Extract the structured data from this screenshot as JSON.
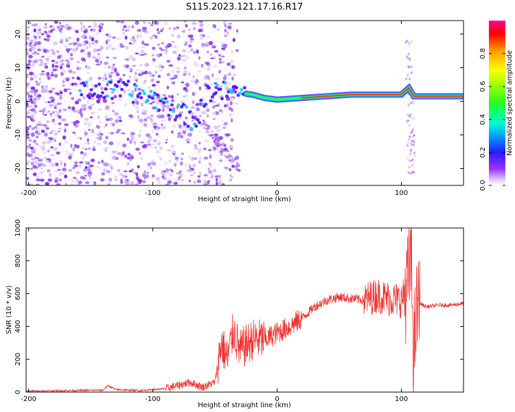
{
  "title": "S115.2023.121.17.16.R17",
  "chart_data": [
    {
      "type": "heatmap",
      "name": "spectrogram",
      "xlabel": "Height of straight line (km)",
      "ylabel": "Frequency (Hz)",
      "xlim": [
        -202,
        150
      ],
      "ylim": [
        -25,
        24
      ],
      "xticks": [
        -200,
        -100,
        0,
        100
      ],
      "yticks": [
        20,
        10,
        0,
        -10,
        -20
      ],
      "colorbar": {
        "label": "Normalized spectral amplitude",
        "range": [
          0,
          1
        ],
        "ticks": [
          0.0,
          0.2,
          0.4,
          0.6,
          0.8
        ]
      },
      "ridge": [
        {
          "x": -160,
          "y": 4
        },
        {
          "x": -140,
          "y": 3
        },
        {
          "x": -120,
          "y": 3
        },
        {
          "x": -100,
          "y": 1
        },
        {
          "x": -80,
          "y": -3
        },
        {
          "x": -65,
          "y": -6
        },
        {
          "x": -55,
          "y": 3
        },
        {
          "x": -40,
          "y": 3
        },
        {
          "x": -20,
          "y": 2
        },
        {
          "x": -10,
          "y": 1
        },
        {
          "x": 0,
          "y": 0.5
        },
        {
          "x": 20,
          "y": 1
        },
        {
          "x": 40,
          "y": 1.5
        },
        {
          "x": 60,
          "y": 2
        },
        {
          "x": 80,
          "y": 2
        },
        {
          "x": 100,
          "y": 2
        },
        {
          "x": 106,
          "y": 4
        },
        {
          "x": 110,
          "y": 1.5
        },
        {
          "x": 150,
          "y": 1.5
        }
      ]
    },
    {
      "type": "line",
      "name": "snr",
      "xlabel": "Height of straight line (km)",
      "ylabel": "SNR (10 * v/v)",
      "xlim": [
        -202,
        150
      ],
      "ylim": [
        0,
        1000
      ],
      "xticks": [
        -200,
        -100,
        0,
        100
      ],
      "yticks": [
        0,
        200,
        400,
        600,
        800,
        1000
      ],
      "color": "#ee3333",
      "series": [
        {
          "name": "SNR",
          "x": [
            -202,
            -180,
            -160,
            -140,
            -136,
            -130,
            -110,
            -90,
            -80,
            -70,
            -60,
            -50,
            -45,
            -40,
            -35,
            -30,
            -20,
            -10,
            0,
            10,
            20,
            30,
            40,
            50,
            60,
            70,
            80,
            90,
            100,
            104,
            108,
            110,
            112,
            115,
            120,
            130,
            140,
            150
          ],
          "y": [
            5,
            8,
            10,
            12,
            40,
            15,
            10,
            20,
            40,
            60,
            30,
            60,
            300,
            200,
            380,
            250,
            320,
            320,
            360,
            400,
            450,
            520,
            560,
            580,
            570,
            560,
            590,
            570,
            560,
            620,
            800,
            200,
            480,
            540,
            520,
            530,
            530,
            540
          ]
        }
      ]
    }
  ]
}
